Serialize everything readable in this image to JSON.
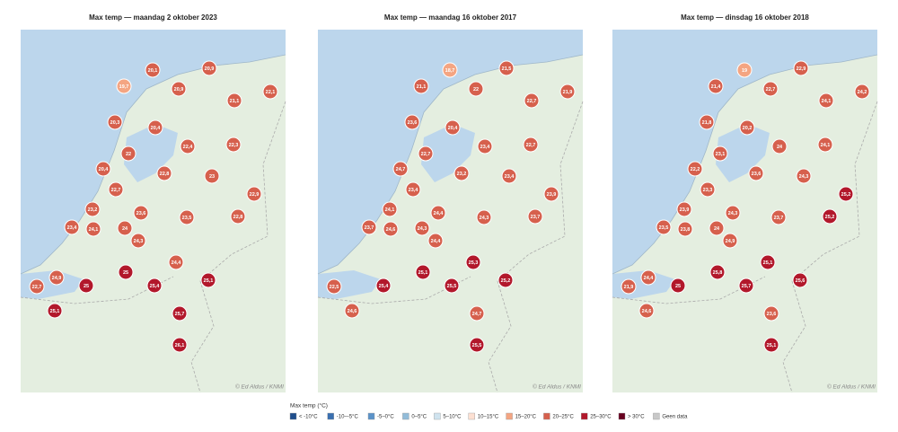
{
  "maps": [
    {
      "title": "Max temp — maandag 2 oktober 2023",
      "credit": "© Ed Aldus / KNMI",
      "stations": [
        {
          "label": "20,1",
          "color": "#d6604d"
        },
        {
          "label": "20,9",
          "color": "#d6604d"
        },
        {
          "label": "19,7",
          "color": "#f4a582"
        },
        {
          "label": "20,9",
          "color": "#d6604d"
        },
        {
          "label": "22,1",
          "color": "#d6604d"
        },
        {
          "label": "21,1",
          "color": "#d6604d"
        },
        {
          "label": "20,3",
          "color": "#d6604d"
        },
        {
          "label": "20,4",
          "color": "#d6604d"
        },
        {
          "label": "22,4",
          "color": "#d6604d"
        },
        {
          "label": "22,3",
          "color": "#d6604d"
        },
        {
          "label": "22",
          "color": "#d6604d"
        },
        {
          "label": "20,4",
          "color": "#d6604d"
        },
        {
          "label": "22,8",
          "color": "#d6604d"
        },
        {
          "label": "23",
          "color": "#d6604d"
        },
        {
          "label": "22,7",
          "color": "#d6604d"
        },
        {
          "label": "22,9",
          "color": "#d6604d"
        },
        {
          "label": "23,2",
          "color": "#d6604d"
        },
        {
          "label": "23,6",
          "color": "#d6604d"
        },
        {
          "label": "23,5",
          "color": "#d6604d"
        },
        {
          "label": "22,8",
          "color": "#d6604d"
        },
        {
          "label": "23,4",
          "color": "#d6604d"
        },
        {
          "label": "24,1",
          "color": "#d6604d"
        },
        {
          "label": "24",
          "color": "#d6604d"
        },
        {
          "label": "24,3",
          "color": "#d6604d"
        },
        {
          "label": "24,4",
          "color": "#d6604d"
        },
        {
          "label": "25",
          "color": "#b2182b"
        },
        {
          "label": "24,9",
          "color": "#d6604d"
        },
        {
          "label": "25,1",
          "color": "#b2182b"
        },
        {
          "label": "22,7",
          "color": "#d6604d"
        },
        {
          "label": "25",
          "color": "#b2182b"
        },
        {
          "label": "25,4",
          "color": "#b2182b"
        },
        {
          "label": "25,1",
          "color": "#b2182b"
        },
        {
          "label": "25,7",
          "color": "#b2182b"
        },
        {
          "label": "26,1",
          "color": "#b2182b"
        }
      ]
    },
    {
      "title": "Max temp — maandag 16 oktober 2017",
      "credit": "© Ed Aldus / KNMI",
      "stations": [
        {
          "label": "18,7",
          "color": "#f4a582"
        },
        {
          "label": "21,5",
          "color": "#d6604d"
        },
        {
          "label": "21,1",
          "color": "#d6604d"
        },
        {
          "label": "22",
          "color": "#d6604d"
        },
        {
          "label": "21,9",
          "color": "#d6604d"
        },
        {
          "label": "22,7",
          "color": "#d6604d"
        },
        {
          "label": "23,6",
          "color": "#d6604d"
        },
        {
          "label": "20,4",
          "color": "#d6604d"
        },
        {
          "label": "23,4",
          "color": "#d6604d"
        },
        {
          "label": "22,7",
          "color": "#d6604d"
        },
        {
          "label": "22,7",
          "color": "#d6604d"
        },
        {
          "label": "24,7",
          "color": "#d6604d"
        },
        {
          "label": "23,2",
          "color": "#d6604d"
        },
        {
          "label": "23,4",
          "color": "#d6604d"
        },
        {
          "label": "23,4",
          "color": "#d6604d"
        },
        {
          "label": "23,9",
          "color": "#d6604d"
        },
        {
          "label": "24,1",
          "color": "#d6604d"
        },
        {
          "label": "24,4",
          "color": "#d6604d"
        },
        {
          "label": "24,3",
          "color": "#d6604d"
        },
        {
          "label": "23,7",
          "color": "#d6604d"
        },
        {
          "label": "23,7",
          "color": "#d6604d"
        },
        {
          "label": "24,6",
          "color": "#d6604d"
        },
        {
          "label": "24,3",
          "color": "#d6604d"
        },
        {
          "label": "24,4",
          "color": "#d6604d"
        },
        {
          "label": "25,3",
          "color": "#b2182b"
        },
        {
          "label": "25,1",
          "color": "#b2182b"
        },
        null,
        {
          "label": "25,2",
          "color": "#b2182b"
        },
        {
          "label": "22,5",
          "color": "#d6604d"
        },
        {
          "label": "25,4",
          "color": "#b2182b"
        },
        {
          "label": "25,5",
          "color": "#b2182b"
        },
        {
          "label": "24,6",
          "color": "#d6604d"
        },
        {
          "label": "24,7",
          "color": "#d6604d"
        },
        {
          "label": "25,5",
          "color": "#b2182b"
        }
      ]
    },
    {
      "title": "Max temp — dinsdag 16 oktober 2018",
      "credit": "© Ed Aldus / KNMI",
      "stations": [
        {
          "label": "19",
          "color": "#f4a582"
        },
        {
          "label": "22,9",
          "color": "#d6604d"
        },
        {
          "label": "21,4",
          "color": "#d6604d"
        },
        {
          "label": "22,7",
          "color": "#d6604d"
        },
        {
          "label": "24,2",
          "color": "#d6604d"
        },
        {
          "label": "24,1",
          "color": "#d6604d"
        },
        {
          "label": "21,8",
          "color": "#d6604d"
        },
        {
          "label": "20,2",
          "color": "#d6604d"
        },
        {
          "label": "24",
          "color": "#d6604d"
        },
        {
          "label": "24,1",
          "color": "#d6604d"
        },
        {
          "label": "23,1",
          "color": "#d6604d"
        },
        {
          "label": "22,2",
          "color": "#d6604d"
        },
        {
          "label": "23,6",
          "color": "#d6604d"
        },
        {
          "label": "24,3",
          "color": "#d6604d"
        },
        {
          "label": "23,3",
          "color": "#d6604d"
        },
        {
          "label": "25,2",
          "color": "#b2182b"
        },
        {
          "label": "23,9",
          "color": "#d6604d"
        },
        {
          "label": "24,3",
          "color": "#d6604d"
        },
        {
          "label": "23,7",
          "color": "#d6604d"
        },
        {
          "label": "25,2",
          "color": "#b2182b"
        },
        {
          "label": "23,5",
          "color": "#d6604d"
        },
        {
          "label": "23,8",
          "color": "#d6604d"
        },
        {
          "label": "24",
          "color": "#d6604d"
        },
        {
          "label": "24,9",
          "color": "#d6604d"
        },
        {
          "label": "25,1",
          "color": "#b2182b"
        },
        {
          "label": "25,8",
          "color": "#b2182b"
        },
        {
          "label": "24,4",
          "color": "#d6604d"
        },
        {
          "label": "25,6",
          "color": "#b2182b"
        },
        {
          "label": "21,9",
          "color": "#d6604d"
        },
        {
          "label": "25",
          "color": "#b2182b"
        },
        {
          "label": "25,7",
          "color": "#b2182b"
        },
        {
          "label": "24,6",
          "color": "#d6604d"
        },
        {
          "label": "23,6",
          "color": "#d6604d"
        },
        {
          "label": "25,1",
          "color": "#b2182b"
        }
      ]
    }
  ],
  "legend": {
    "title": "Max temp (°C)",
    "items": [
      {
        "label": "< -10°C",
        "color": "#1f4e8c"
      },
      {
        "label": "-10–-5°C",
        "color": "#3a6fb0"
      },
      {
        "label": "-5–0°C",
        "color": "#5b93c9"
      },
      {
        "label": "0–5°C",
        "color": "#92bcd9"
      },
      {
        "label": "5–10°C",
        "color": "#cfe3ef"
      },
      {
        "label": "10–15°C",
        "color": "#fde0d2"
      },
      {
        "label": "15–20°C",
        "color": "#f4a582"
      },
      {
        "label": "20–25°C",
        "color": "#d6604d"
      },
      {
        "label": "25–30°C",
        "color": "#b2182b"
      },
      {
        "label": "> 30°C",
        "color": "#67001f"
      },
      {
        "label": "Geen data",
        "color": "#c8c8c8"
      }
    ]
  }
}
